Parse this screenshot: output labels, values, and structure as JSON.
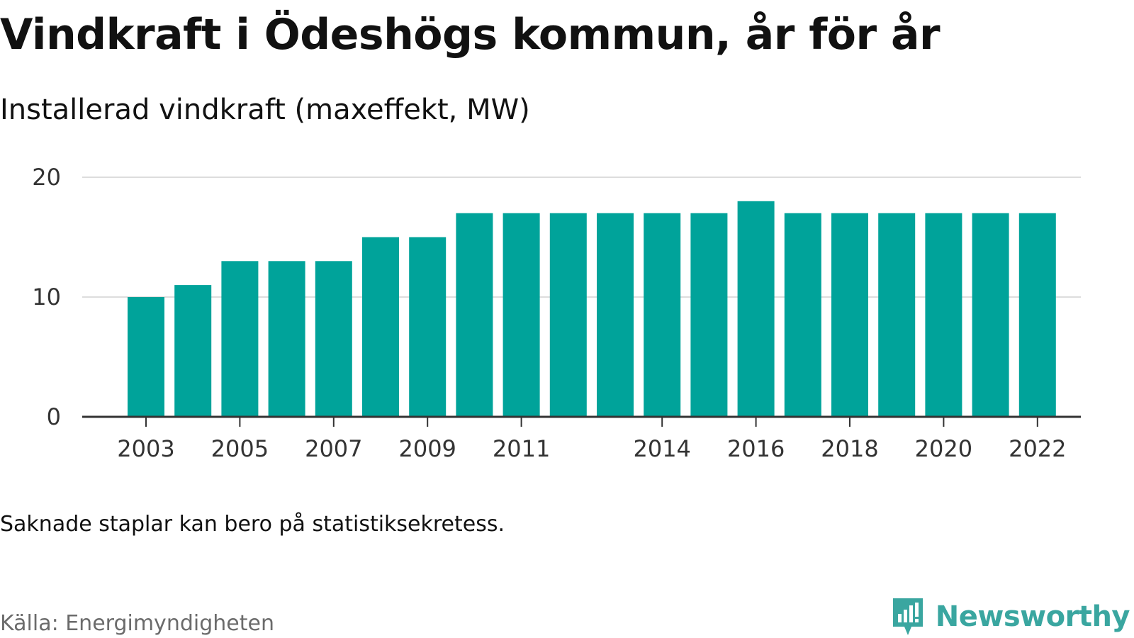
{
  "header": {
    "title": "Vindkraft i Ödeshögs kommun, år för år",
    "subtitle": "Installerad vindkraft (maxeffekt, MW)"
  },
  "footer": {
    "note": "Saknade staplar kan bero på statistiksekretess.",
    "source": "Källa: Energimyndigheten",
    "brand": "Newsworthy",
    "brand_icon": "newsworthy-logo-icon"
  },
  "colors": {
    "bar": "#00A39A",
    "grid": "#dddddd",
    "axis": "#333333",
    "brand": "#3aa6a0"
  },
  "chart_data": {
    "type": "bar",
    "title": "Vindkraft i Ödeshögs kommun, år för år",
    "subtitle": "Installerad vindkraft (maxeffekt, MW)",
    "xlabel": "",
    "ylabel": "",
    "categories": [
      "2003",
      "2004",
      "2005",
      "2006",
      "2007",
      "2008",
      "2009",
      "2010",
      "2011",
      "2012",
      "2013",
      "2014",
      "2015",
      "2016",
      "2017",
      "2018",
      "2019",
      "2020",
      "2021",
      "2022"
    ],
    "values": [
      10,
      11,
      13,
      13,
      13,
      15,
      15,
      17,
      17,
      17,
      17,
      17,
      17,
      18,
      17,
      17,
      17,
      17,
      17,
      17
    ],
    "x_tick_labels": [
      "2003",
      "2005",
      "2007",
      "2009",
      "2011",
      "2014",
      "2016",
      "2018",
      "2020",
      "2022"
    ],
    "y_ticks": [
      0,
      10,
      20
    ],
    "ylim": [
      0,
      20
    ],
    "grid": true,
    "legend": "none"
  }
}
